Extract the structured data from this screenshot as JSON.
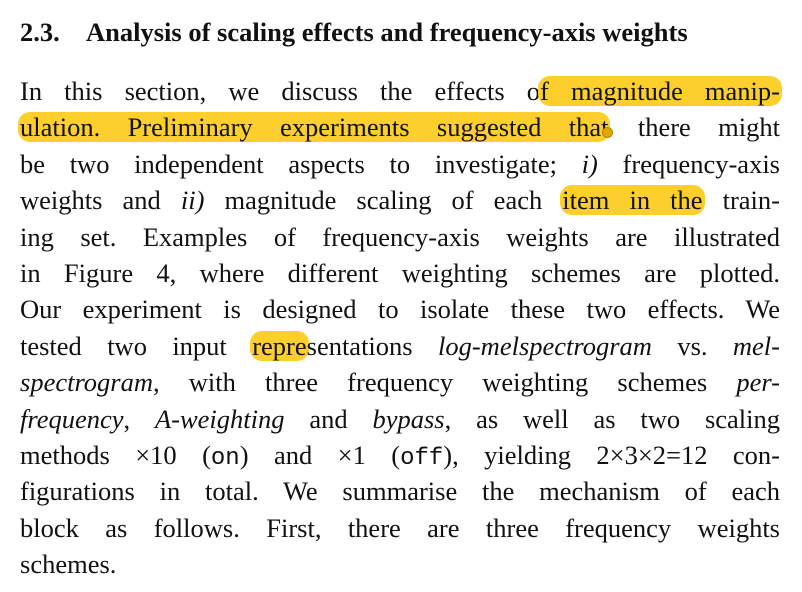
{
  "section": {
    "number": "2.3.",
    "title": "Analysis of scaling effects and frequency-axis weights"
  },
  "paragraph": {
    "l1a": "In this section, we discuss the effects o",
    "l1b": "f magnitude manip-",
    "l2a": "ulation. Preliminary experiments suggested that",
    "l2b": " there might",
    "l3a": "be two independent aspects to investigate; ",
    "l3b": "i)",
    "l3c": " frequency-axis",
    "l4a": "weights and ",
    "l4b": "ii)",
    "l4c": " magnitude scaling of each ",
    "l4d": "item in the",
    "l4e": " train-",
    "l5": "ing set. Examples of frequency-axis weights are illustrated",
    "l6": "in Figure 4, where different weighting schemes are plotted.",
    "l7": "Our experiment is designed to isolate these two effects. We",
    "l8a": "tested two input ",
    "l8b": "repre",
    "l8c": "sentations ",
    "l8d": "log-melspectrogram",
    "l8e": " vs. ",
    "l8f": "mel-",
    "l9a": "spectrogram",
    "l9b": ", with three frequency weighting schemes ",
    "l9c": "per-",
    "l10a": "frequency",
    "l10b": ", ",
    "l10c": "A-weighting",
    "l10d": " and ",
    "l10e": "bypass",
    "l10f": ", as well as two scaling",
    "l11a": "methods ×10 (",
    "l11b": "on",
    "l11c": ") and ×1 (",
    "l11d": "off",
    "l11e": "), yielding 2×3×2=12 con-",
    "l12": "figurations in total. We summarise the mechanism of each",
    "l13": "block as follows. First, there are three frequency weights",
    "l14": "schemes."
  },
  "highlight_color": "#fccf2c"
}
